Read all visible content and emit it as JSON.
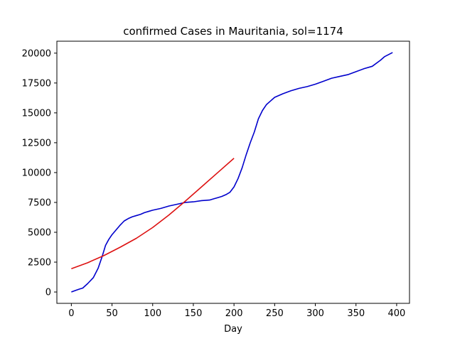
{
  "chart_data": {
    "type": "line",
    "title": "confirmed Cases in Mauritania, sol=1174",
    "xlabel": "Day",
    "ylabel": "",
    "xlim": [
      -17.8,
      415.8
    ],
    "ylim": [
      -950,
      21000
    ],
    "x_ticks": [
      0,
      50,
      100,
      150,
      200,
      250,
      300,
      350,
      400
    ],
    "y_ticks": [
      0,
      2500,
      5000,
      7500,
      10000,
      12500,
      15000,
      17500,
      20000
    ],
    "grid": false,
    "legend": "none",
    "series": [
      {
        "color": "#0000cc",
        "x": [
          0,
          5,
          10,
          14,
          20,
          27,
          33,
          38,
          42,
          46,
          50,
          55,
          60,
          65,
          70,
          75,
          80,
          85,
          90,
          95,
          100,
          110,
          120,
          130,
          140,
          150,
          160,
          170,
          175,
          180,
          185,
          190,
          195,
          200,
          205,
          210,
          215,
          220,
          225,
          230,
          235,
          240,
          245,
          250,
          255,
          260,
          270,
          280,
          290,
          300,
          310,
          320,
          330,
          340,
          350,
          360,
          370,
          380,
          385,
          395
        ],
        "y": [
          0,
          130,
          250,
          330,
          700,
          1200,
          2000,
          3000,
          3900,
          4400,
          4800,
          5200,
          5600,
          5950,
          6150,
          6300,
          6400,
          6500,
          6650,
          6750,
          6850,
          7000,
          7200,
          7350,
          7500,
          7550,
          7650,
          7700,
          7800,
          7900,
          8000,
          8150,
          8350,
          8800,
          9500,
          10400,
          11500,
          12500,
          13400,
          14500,
          15200,
          15700,
          16000,
          16300,
          16450,
          16600,
          16850,
          17050,
          17200,
          17400,
          17650,
          17900,
          18050,
          18200,
          18450,
          18700,
          18900,
          19400,
          19700,
          20050
        ]
      },
      {
        "color": "#dd1111",
        "x": [
          0,
          20,
          40,
          60,
          80,
          100,
          120,
          140,
          160,
          180,
          200
        ],
        "y": [
          1950,
          2450,
          3050,
          3750,
          4500,
          5400,
          6450,
          7600,
          8800,
          10000,
          11200
        ]
      }
    ]
  }
}
